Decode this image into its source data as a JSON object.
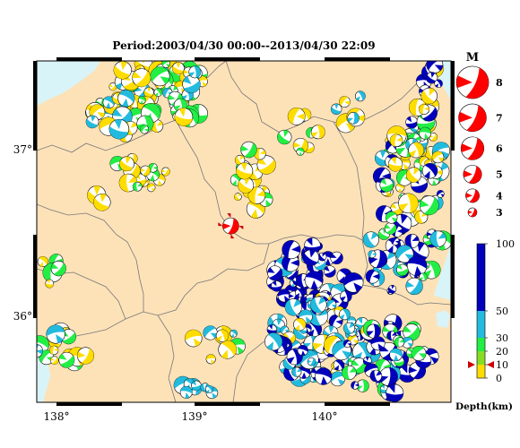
{
  "title": "Period:2003/04/30 00:00--2013/04/30 22:09",
  "axes": {
    "x_ticks": [
      "138°",
      "139°",
      "140°"
    ],
    "y_ticks": [
      "37°",
      "36°"
    ]
  },
  "magnitude_legend": {
    "heading": "M",
    "entries": [
      {
        "label": "8",
        "magnitude": 8
      },
      {
        "label": "7",
        "magnitude": 7
      },
      {
        "label": "6",
        "magnitude": 6
      },
      {
        "label": "5",
        "magnitude": 5
      },
      {
        "label": "4",
        "magnitude": 4
      },
      {
        "label": "3",
        "magnitude": 3
      }
    ]
  },
  "depth_scale": {
    "title": "Depth(km)",
    "range_km": [
      0,
      100
    ],
    "ticks": [
      {
        "label": "100",
        "km": 100
      },
      {
        "label": "50",
        "km": 50
      },
      {
        "label": "30",
        "km": 30
      },
      {
        "label": "20",
        "km": 20
      },
      {
        "label": "10",
        "km": 10
      },
      {
        "label": "0",
        "km": 0
      }
    ],
    "bands": [
      {
        "from_km": 0,
        "to_km": 10,
        "color": "#ffdd00"
      },
      {
        "from_km": 10,
        "to_km": 20,
        "color": "#88dd22"
      },
      {
        "from_km": 20,
        "to_km": 30,
        "color": "#22ee44"
      },
      {
        "from_km": 30,
        "to_km": 50,
        "color": "#22bbdd"
      },
      {
        "from_km": 50,
        "to_km": 100,
        "color": "#0000bb"
      }
    ],
    "marker_km": 10
  },
  "colors": {
    "land": "#fde2b8",
    "sea": "#d8f4f8",
    "highlight": "#ff0000",
    "shallow": "#ffdd00",
    "mid_shallow": "#22ee44",
    "mid_deep": "#22bbdd",
    "deep": "#0000bb"
  },
  "highlight_event": {
    "lon": 139.3,
    "lat": 36.55,
    "magnitude": 5
  }
}
